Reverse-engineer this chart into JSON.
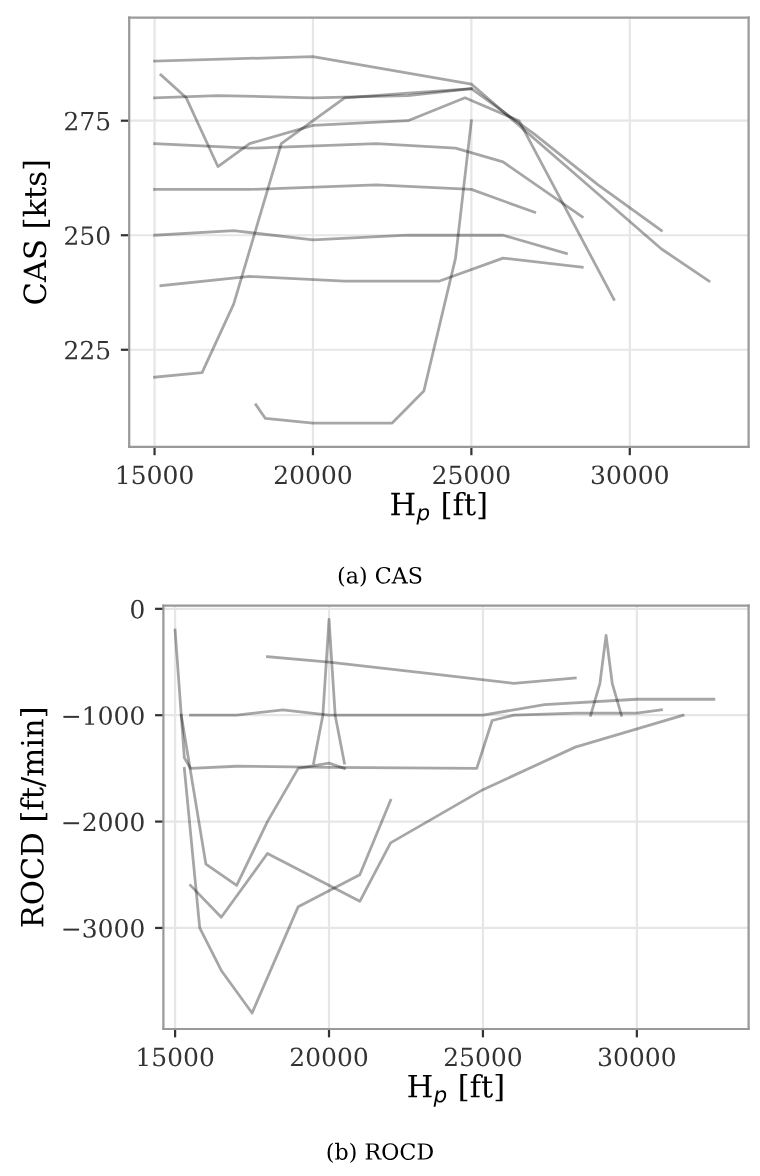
{
  "chart_data": [
    {
      "type": "line",
      "xlabel": "H$_{p}$ [ft]",
      "ylabel": "CAS [kts]",
      "annotations": [
        "(a) CAS"
      ],
      "xlim": [
        14200,
        33750
      ],
      "ylim": [
        203.8,
        297.5
      ],
      "xticks": [
        15000,
        20000,
        25000,
        30000
      ],
      "yticks": [
        225,
        250,
        275
      ],
      "grid": true,
      "legend": false,
      "marker": "none",
      "line_style": "solid",
      "series": [
        {
          "color": "#000000",
          "x": [
            15000,
            17000,
            20000,
            23000,
            25000,
            27000,
            29000,
            31000
          ],
          "values": [
            280,
            280.5,
            280,
            280.5,
            282,
            272,
            261,
            251
          ]
        },
        {
          "color": "#000000",
          "x": [
            15000,
            20000,
            25000,
            28000,
            31000,
            32500
          ],
          "values": [
            288,
            289,
            283,
            265,
            247,
            240
          ]
        },
        {
          "color": "#000000",
          "x": [
            15000,
            18000,
            22000,
            24500,
            26000,
            28500
          ],
          "values": [
            270,
            269,
            270,
            269,
            266,
            254
          ]
        },
        {
          "color": "#000000",
          "x": [
            15000,
            18000,
            22000,
            25000,
            27000
          ],
          "values": [
            260,
            260,
            261,
            260,
            255
          ]
        },
        {
          "color": "#000000",
          "x": [
            15000,
            17500,
            20000,
            23000,
            26000,
            28000
          ],
          "values": [
            250,
            251,
            249,
            250,
            250,
            246
          ]
        },
        {
          "color": "#000000",
          "x": [
            15200,
            18000,
            21000,
            24000,
            26000,
            28500
          ],
          "values": [
            239,
            241,
            240,
            240,
            245,
            243
          ]
        },
        {
          "color": "#000000",
          "x": [
            15000,
            16500,
            17500,
            19000,
            21000,
            23000,
            25000
          ],
          "values": [
            219,
            220,
            235,
            270,
            280,
            281,
            282
          ]
        },
        {
          "color": "#000000",
          "x": [
            18200,
            18500,
            20000,
            22500,
            23500,
            24500,
            25000
          ],
          "values": [
            213,
            210,
            209,
            209,
            216,
            245,
            275
          ]
        },
        {
          "color": "#000000",
          "x": [
            15200,
            16000,
            17000,
            18000,
            20000,
            23000,
            24800,
            26500,
            29500
          ],
          "values": [
            285,
            280,
            265,
            270,
            274,
            275,
            280,
            275,
            236
          ]
        }
      ]
    },
    {
      "type": "line",
      "xlabel": "H$_{p}$ [ft]",
      "ylabel": "ROCD [ft/min]",
      "annotations": [
        "(b) ROCD"
      ],
      "xlim": [
        14620,
        33630
      ],
      "ylim": [
        -3950,
        30
      ],
      "xticks": [
        15000,
        20000,
        25000,
        30000
      ],
      "yticks": [
        0,
        {
          "value": -1000,
          "label": "−1000"
        },
        {
          "value": -2000,
          "label": "−2000"
        },
        {
          "value": -3000,
          "label": "−3000"
        }
      ],
      "grid": true,
      "legend": false,
      "marker": "none",
      "line_style": "solid",
      "series": [
        {
          "color": "#000000",
          "x": [
            15000,
            15300,
            15500,
            17000,
            20000,
            24800,
            25300,
            26000,
            28000,
            30000,
            30800
          ],
          "values": [
            -200,
            -1400,
            -1500,
            -1480,
            -1490,
            -1500,
            -1050,
            -1000,
            -980,
            -980,
            -950
          ]
        },
        {
          "color": "#000000",
          "x": [
            15200,
            16000,
            17000,
            18000,
            19000,
            20000,
            20500
          ],
          "values": [
            -1000,
            -2400,
            -2600,
            -2000,
            -1500,
            -1450,
            -1500
          ]
        },
        {
          "color": "#000000",
          "x": [
            15500,
            17000,
            18500,
            20000,
            22000,
            25000,
            27000,
            30000,
            32500
          ],
          "values": [
            -1000,
            -1000,
            -950,
            -1000,
            -1000,
            -1000,
            -900,
            -850,
            -850
          ]
        },
        {
          "color": "#000000",
          "x": [
            15300,
            15800,
            16500,
            17500,
            19000,
            21000,
            22000
          ],
          "values": [
            -1500,
            -3000,
            -3400,
            -3800,
            -2800,
            -2500,
            -1800
          ]
        },
        {
          "color": "#000000",
          "x": [
            15500,
            16500,
            18000,
            21000,
            22000,
            25000,
            28000,
            31500
          ],
          "values": [
            -2600,
            -2900,
            -2300,
            -2750,
            -2200,
            -1700,
            -1300,
            -1000
          ]
        },
        {
          "color": "#000000",
          "x": [
            18000,
            20000,
            23000,
            26000,
            28000
          ],
          "values": [
            -450,
            -500,
            -600,
            -700,
            -650
          ]
        },
        {
          "color": "#000000",
          "x": [
            19500,
            19800,
            20000,
            20200,
            20500
          ],
          "values": [
            -1450,
            -1000,
            -100,
            -1000,
            -1450
          ]
        },
        {
          "color": "#000000",
          "x": [
            28500,
            28800,
            29000,
            29200,
            29500
          ],
          "values": [
            -1000,
            -700,
            -250,
            -700,
            -1000
          ]
        }
      ]
    }
  ]
}
